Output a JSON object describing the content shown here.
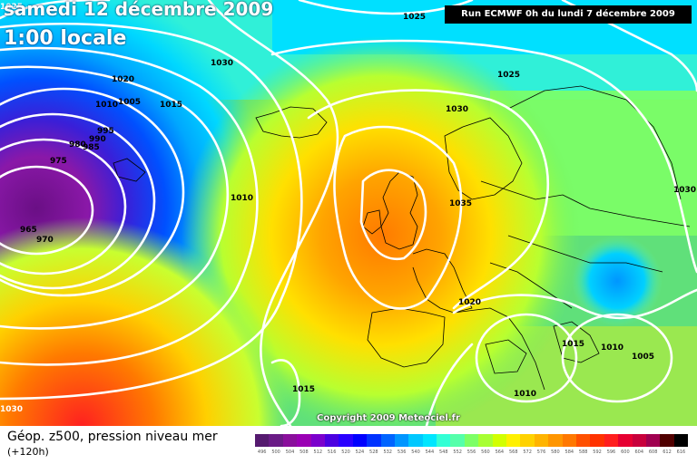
{
  "header": {
    "date_line": "samedi 12 décembre 2009",
    "time_line": "1:00 locale",
    "run_info": "Run ECMWF 0h du lundi 7 décembre 2009",
    "copyright": "Copyright 2009 Meteociel.fr"
  },
  "legend": {
    "title": "Géop. z500, pression niveau mer",
    "subtitle": "(+120h)",
    "values": [
      "496",
      "500",
      "504",
      "508",
      "512",
      "516",
      "520",
      "524",
      "528",
      "532",
      "536",
      "540",
      "544",
      "548",
      "552",
      "556",
      "560",
      "564",
      "568",
      "572",
      "576",
      "580",
      "584",
      "588",
      "592",
      "596",
      "600",
      "604",
      "608",
      "612",
      "616"
    ],
    "colors": [
      "#551a6f",
      "#6a1b86",
      "#8a0f9c",
      "#9a00b4",
      "#7b00cc",
      "#4b00e0",
      "#2a00ff",
      "#0000ff",
      "#0032ff",
      "#0064ff",
      "#0096ff",
      "#00c8ff",
      "#00e6ff",
      "#33ffd5",
      "#55ffaa",
      "#7dff66",
      "#a8ff33",
      "#d2ff00",
      "#fff000",
      "#ffd200",
      "#ffb400",
      "#ff9600",
      "#ff7800",
      "#ff5000",
      "#ff3200",
      "#ff1e1e",
      "#e60032",
      "#c8003c",
      "#a00050",
      "#500000",
      "#000000"
    ]
  },
  "pressure_labels": [
    "1025",
    "1025",
    "1030",
    "1030",
    "1030",
    "1020",
    "1015",
    "1010",
    "1005",
    "995",
    "990",
    "985",
    "980",
    "975",
    "965",
    "970",
    "1010",
    "1035",
    "1020",
    "1015",
    "1010",
    "1005",
    "1010",
    "1015",
    "1025",
    "1030"
  ]
}
